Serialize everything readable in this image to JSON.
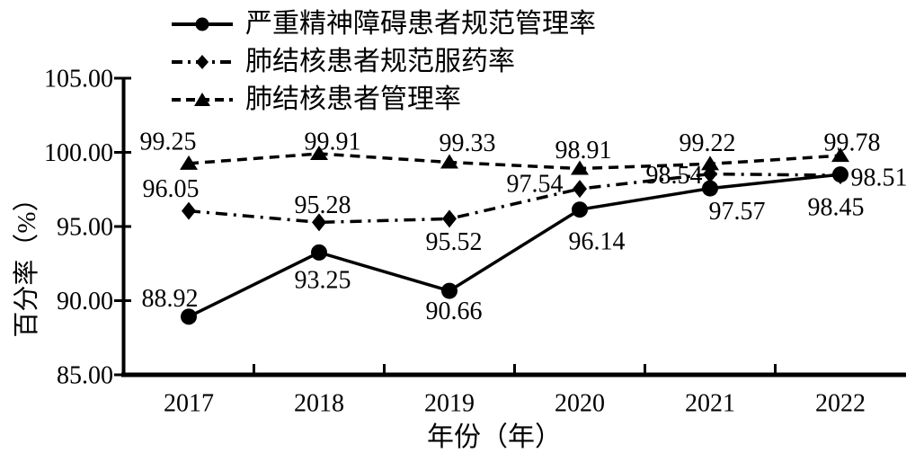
{
  "figure": {
    "background": "#ffffff",
    "ink_color": "#000000"
  },
  "chart_data": {
    "type": "line",
    "title": "",
    "xlabel": "年份（年）",
    "ylabel": "百分率（%）",
    "categories": [
      "2017",
      "2018",
      "2019",
      "2020",
      "2021",
      "2022"
    ],
    "ylim": [
      85,
      105
    ],
    "ytick_step": 5,
    "ytick_labels": [
      "85.00",
      "90.00",
      "95.00",
      "100.00",
      "105.00"
    ],
    "grid": false,
    "legend_position": "top-left",
    "series": [
      {
        "name": "严重精神障碍患者规范管理率",
        "marker": "circle",
        "line_style": "solid",
        "values": [
          88.92,
          93.25,
          90.66,
          96.14,
          97.57,
          98.51
        ],
        "label_offsets": [
          [
            -21,
            -20
          ],
          [
            4,
            31
          ],
          [
            5,
            23
          ],
          [
            19,
            36
          ],
          [
            30,
            26
          ],
          [
            43,
            4
          ]
        ]
      },
      {
        "name": "肺结核患者规范服药率",
        "marker": "diamond",
        "line_style": "dash-dot",
        "values": [
          96.05,
          95.28,
          95.52,
          97.54,
          98.54,
          98.45
        ],
        "label_offsets": [
          [
            -20,
            -24
          ],
          [
            4,
            -19
          ],
          [
            5,
            26
          ],
          [
            -50,
            -5
          ],
          [
            -40,
            2
          ],
          [
            -5,
            36
          ]
        ]
      },
      {
        "name": "肺结核患者管理率",
        "marker": "triangle",
        "line_style": "dashed",
        "values": [
          99.25,
          99.91,
          99.33,
          98.91,
          99.22,
          99.78
        ],
        "label_offsets": [
          [
            -23,
            -24
          ],
          [
            15,
            -13
          ],
          [
            20,
            -21
          ],
          [
            4,
            -20
          ],
          [
            -3,
            -23
          ],
          [
            13,
            -14
          ]
        ]
      }
    ]
  }
}
